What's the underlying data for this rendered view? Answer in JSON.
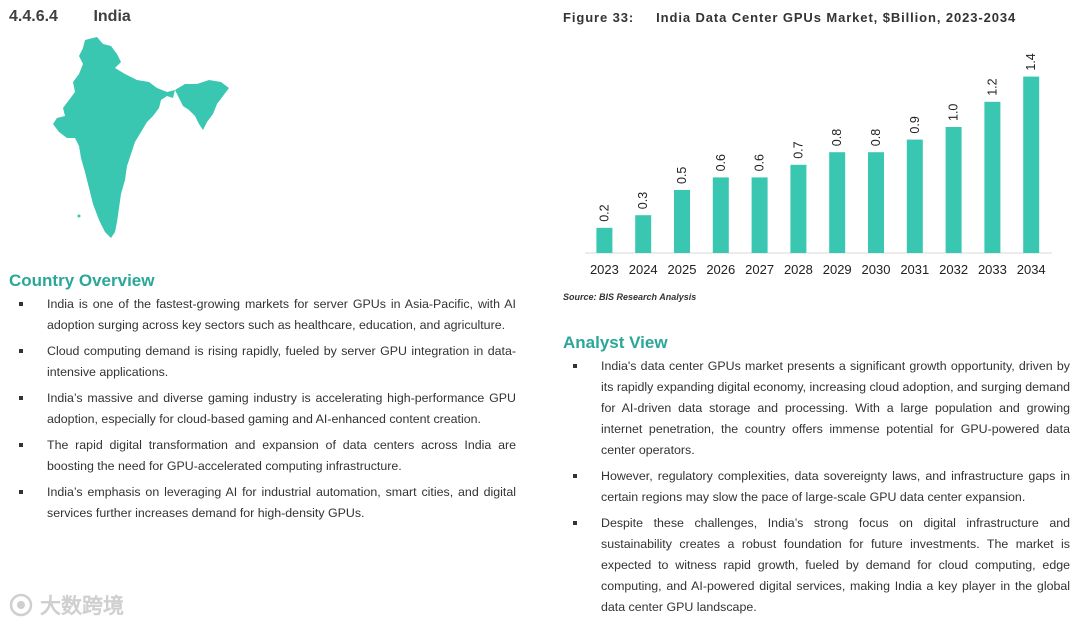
{
  "section": {
    "number": "4.4.6.4",
    "title": "India"
  },
  "country_overview": {
    "heading": "Country Overview",
    "bullets": [
      "India is one of the fastest-growing markets for server GPUs in Asia-Pacific, with AI adoption surging across key sectors such as healthcare, education, and agriculture.",
      "Cloud computing demand is rising rapidly, fueled by server GPU integration in data-intensive applications.",
      "India’s massive and diverse gaming industry is accelerating high-performance GPU adoption, especially for cloud-based gaming and AI-enhanced content creation.",
      "The rapid digital transformation and expansion of data centers across India are boosting the need for GPU-accelerated computing infrastructure.",
      "India’s emphasis on leveraging AI for industrial automation, smart cities, and digital services further increases demand for high-density GPUs."
    ]
  },
  "figure": {
    "label": "Figure 33:",
    "title": "India Data Center GPUs Market, $Billion, 2023-2034",
    "source": "Source: BIS Research Analysis"
  },
  "chart_data": {
    "type": "bar",
    "title": "India Data Center GPUs Market, $Billion, 2023-2034",
    "categories": [
      "2023",
      "2024",
      "2025",
      "2026",
      "2027",
      "2028",
      "2029",
      "2030",
      "2031",
      "2032",
      "2033",
      "2034"
    ],
    "values": [
      0.2,
      0.3,
      0.5,
      0.6,
      0.6,
      0.7,
      0.8,
      0.8,
      0.9,
      1.0,
      1.2,
      1.4
    ],
    "value_labels": [
      "0.2",
      "0.3",
      "0.5",
      "0.6",
      "0.6",
      "0.7",
      "0.8",
      "0.8",
      "0.9",
      "1.0",
      "1.2",
      "1.4"
    ],
    "xlabel": "",
    "ylabel": "",
    "ylim": [
      0,
      1.5
    ],
    "grid": false,
    "bar_color": "#39c7b2"
  },
  "analyst_view": {
    "heading": "Analyst View",
    "bullets": [
      "India's data center GPUs market presents a significant growth opportunity, driven by its rapidly expanding digital economy, increasing cloud adoption, and surging demand for AI-driven data storage and processing. With a large population and growing internet penetration, the country offers immense potential for GPU-powered data center operators.",
      "However, regulatory complexities, data sovereignty laws, and infrastructure gaps in certain regions may slow the pace of large-scale GPU data center expansion.",
      "Despite these challenges, India’s strong focus on digital infrastructure and sustainability creates a robust foundation for future investments. The market is expected to witness rapid growth, fueled by demand for cloud computing, edge computing, and AI-powered digital services, making India a key player in the global data center GPU landscape."
    ]
  },
  "map": {
    "color": "#39c7b2"
  },
  "watermark": "大数跨境"
}
